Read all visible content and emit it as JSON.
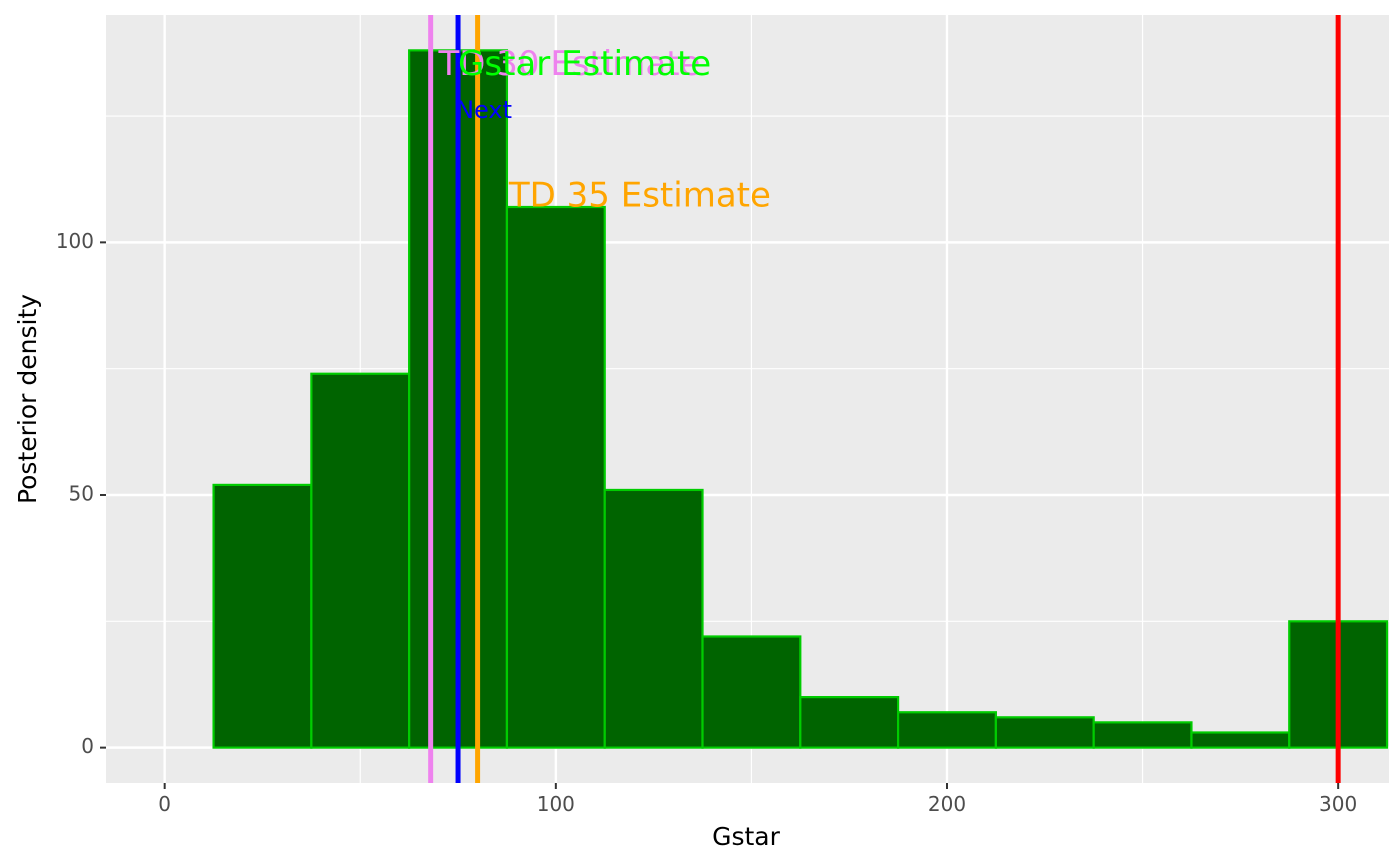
{
  "chart_data": {
    "type": "bar",
    "subtype": "histogram",
    "xlabel": "Gstar",
    "ylabel": "Posterior density",
    "xlim": [
      -15,
      313
    ],
    "ylim": [
      -7,
      145
    ],
    "x_ticks": [
      0,
      100,
      200,
      300
    ],
    "y_ticks": [
      0,
      50,
      100
    ],
    "grid": true,
    "bin_width": 25,
    "bins": [
      {
        "start": 12.5,
        "end": 37.5,
        "count": 52
      },
      {
        "start": 37.5,
        "end": 62.5,
        "count": 74
      },
      {
        "start": 62.5,
        "end": 87.5,
        "count": 138
      },
      {
        "start": 87.5,
        "end": 112.5,
        "count": 107
      },
      {
        "start": 112.5,
        "end": 137.5,
        "count": 51
      },
      {
        "start": 137.5,
        "end": 162.5,
        "count": 22
      },
      {
        "start": 162.5,
        "end": 187.5,
        "count": 10
      },
      {
        "start": 187.5,
        "end": 212.5,
        "count": 7
      },
      {
        "start": 212.5,
        "end": 237.5,
        "count": 6
      },
      {
        "start": 237.5,
        "end": 262.5,
        "count": 5
      },
      {
        "start": 262.5,
        "end": 287.5,
        "count": 3
      },
      {
        "start": 287.5,
        "end": 312.5,
        "count": 25
      }
    ],
    "bar_fill": "#006400",
    "bar_outline": "#00cc00",
    "vlines": [
      {
        "x": 68,
        "color": "#ee82ee",
        "label": "TD 30 Estimate",
        "label_x": 70,
        "label_y": 135,
        "size": "large"
      },
      {
        "x": 75,
        "color": "#0000ff",
        "label": "Next",
        "label_x": 74.5,
        "label_y": 126,
        "size": "small"
      },
      {
        "x": 80,
        "color": "#ffa500",
        "label": "TD 35 Estimate",
        "label_x": 88,
        "label_y": 109,
        "size": "large"
      },
      {
        "x": 300,
        "color": "#ff0000",
        "label": "",
        "size": "large"
      }
    ],
    "extra_labels": [
      {
        "text": "Gstar Estimate",
        "color": "#00ff00",
        "label_x": 75,
        "label_y": 135,
        "size": "large"
      }
    ],
    "panel_bg": "#ebebeb",
    "grid_major_color": "#ffffff"
  }
}
